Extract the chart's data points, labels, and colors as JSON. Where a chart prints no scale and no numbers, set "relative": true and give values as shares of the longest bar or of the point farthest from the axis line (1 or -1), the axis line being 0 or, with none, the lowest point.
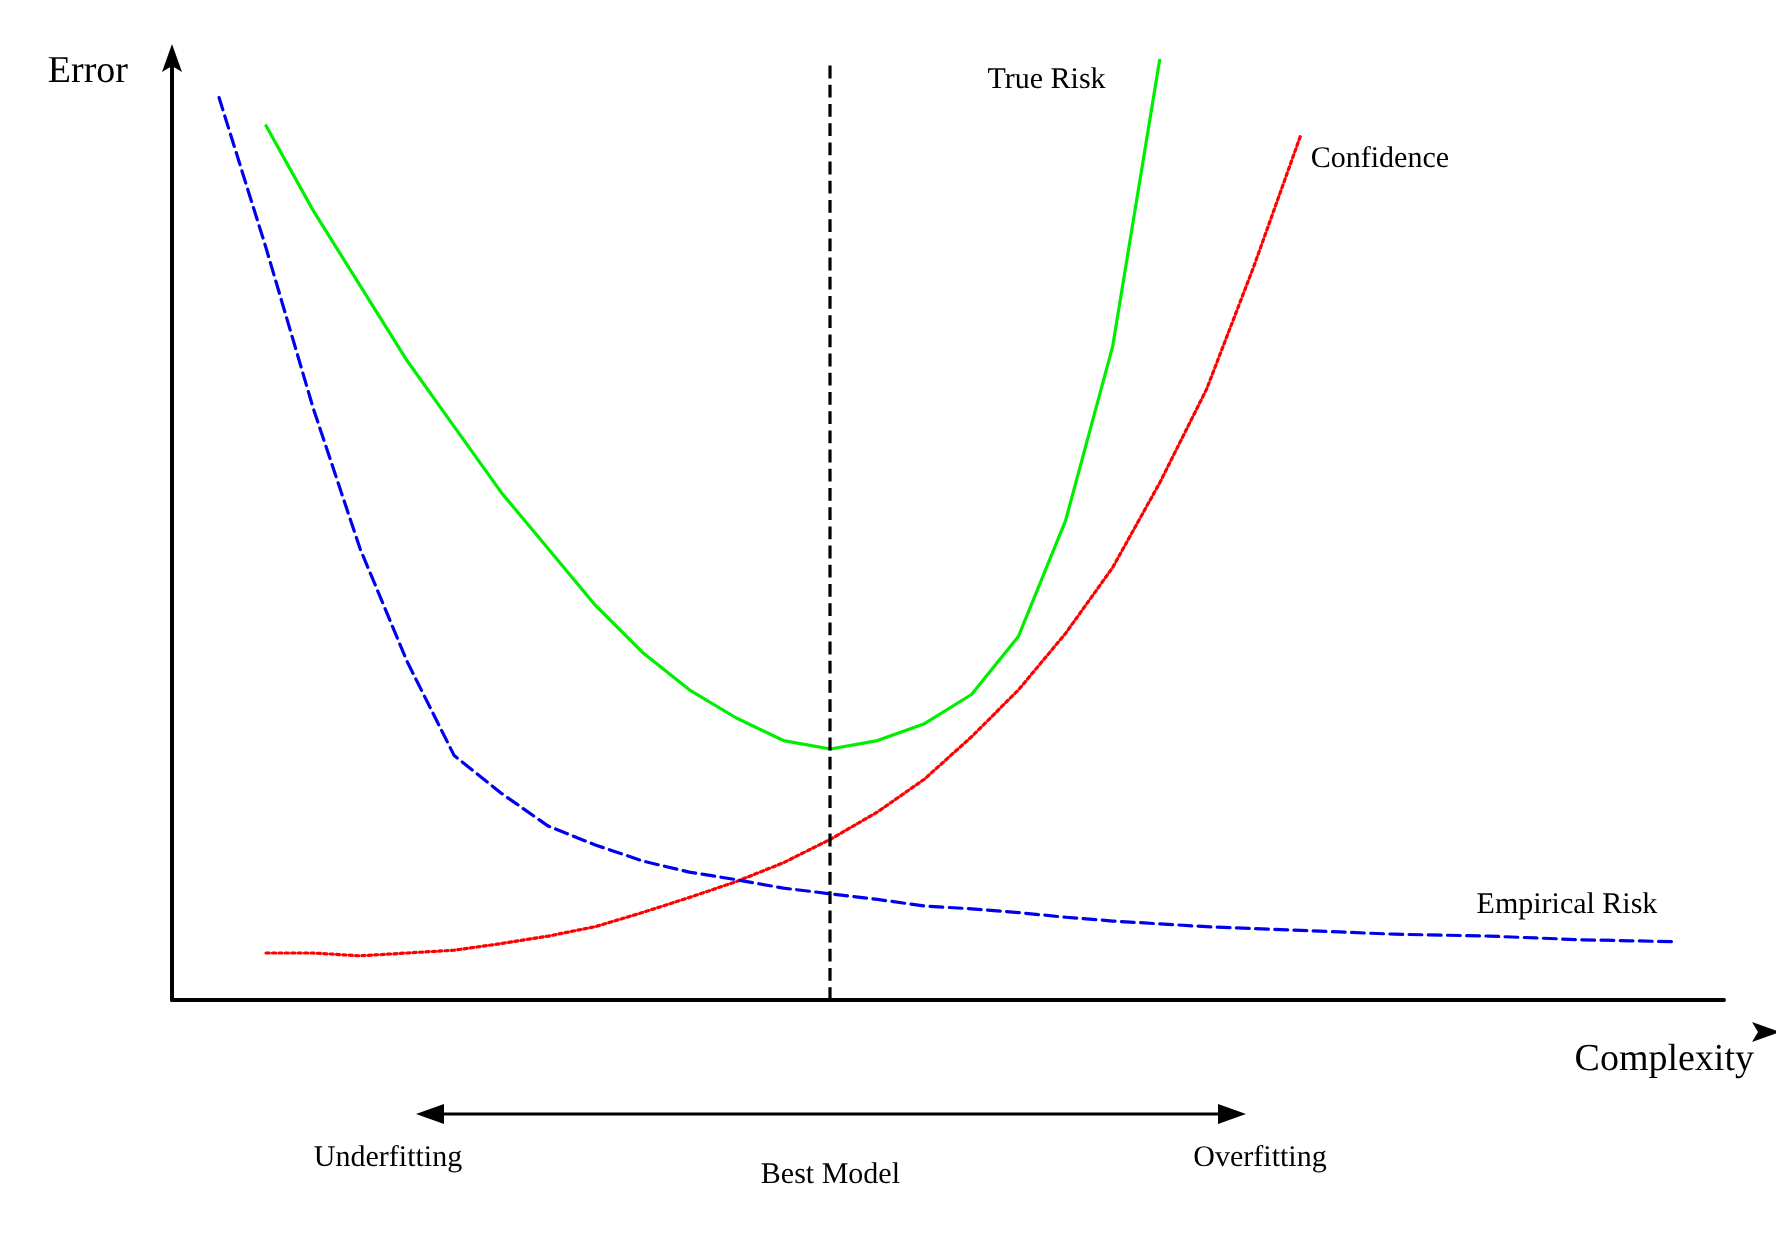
{
  "chart_data": {
    "type": "line",
    "xlabel": "Complexity",
    "ylabel": "Error",
    "relative": true,
    "grid": false,
    "marker": "none",
    "categories": [
      null,
      null,
      null,
      null,
      null,
      null,
      null,
      null,
      null,
      null,
      null,
      null,
      null,
      null,
      null,
      null,
      null,
      null,
      null,
      null,
      null,
      null,
      null,
      null,
      null,
      null,
      null,
      null,
      null,
      null,
      null,
      null,
      null,
      null
    ],
    "series": [
      {
        "name": "True Risk",
        "color": "#00ee00",
        "line_style": "solid",
        "values": [
          null,
          null,
          0.93,
          0.84,
          0.76,
          0.68,
          0.61,
          0.54,
          0.48,
          0.42,
          0.37,
          0.33,
          0.3,
          0.276,
          0.267,
          0.276,
          0.294,
          0.325,
          0.387,
          0.51,
          0.695,
          1,
          null,
          null,
          null,
          null,
          null,
          null,
          null,
          null,
          null,
          null,
          null,
          null
        ]
      },
      {
        "name": "Confidence",
        "color": "#ff0000",
        "line_style": "dotted",
        "values": [
          null,
          null,
          0.05,
          0.05,
          0.047,
          0.05,
          0.053,
          0.06,
          0.068,
          0.078,
          0.093,
          0.109,
          0.126,
          0.146,
          0.171,
          0.2,
          0.235,
          0.28,
          0.33,
          0.39,
          0.46,
          0.55,
          0.65,
          0.78,
          0.92,
          null,
          null,
          null,
          null,
          null,
          null,
          null,
          null,
          null
        ]
      },
      {
        "name": "Empirical Risk",
        "color": "#0000ee",
        "line_style": "dashed",
        "values": [
          null,
          0.96,
          0.8,
          0.63,
          0.48,
          0.36,
          0.26,
          0.22,
          0.185,
          0.165,
          0.148,
          0.136,
          0.128,
          0.119,
          0.113,
          0.107,
          0.1,
          0.097,
          0.093,
          0.088,
          0.084,
          0.081,
          0.078,
          0.076,
          0.074,
          0.072,
          0.07,
          0.069,
          0.068,
          0.066,
          0.064,
          0.063,
          0.062,
          null
        ]
      }
    ],
    "ref_lines": [
      {
        "axis": "x",
        "label": "Best Model",
        "color": "#000000",
        "line_style": "dashed"
      }
    ],
    "annotations": [
      "Underfitting",
      "Overfitting"
    ]
  }
}
